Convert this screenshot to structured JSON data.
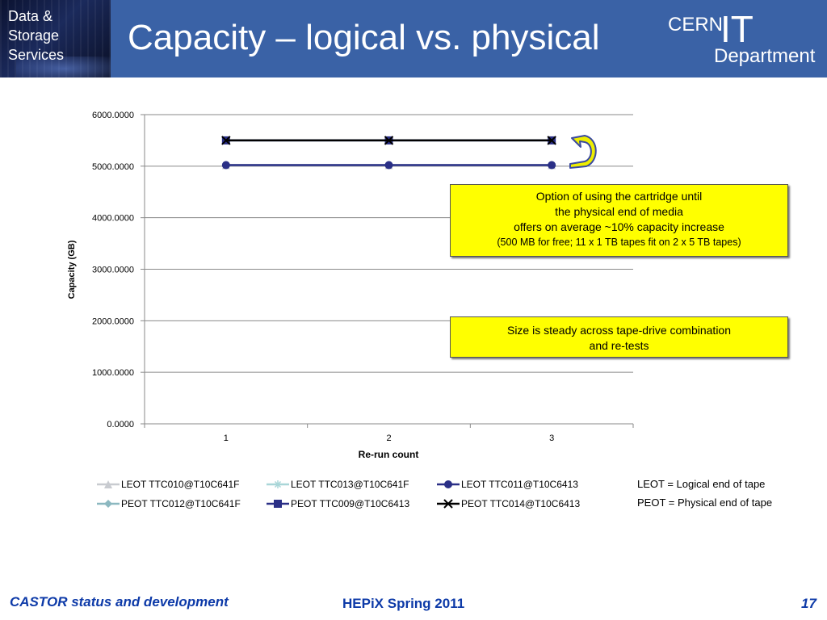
{
  "header": {
    "badge_lines": [
      "Data &",
      "Storage",
      "Services"
    ],
    "title": "Capacity – logical vs. physical",
    "logo": {
      "top": "CERN",
      "big": "IT",
      "bottom": "Department"
    }
  },
  "annotations": {
    "option": {
      "lines": [
        "Option of using the cartridge until",
        "the physical end of media",
        "offers on average ~10% capacity increase"
      ],
      "note": "(500 MB for free; 11 x 1 TB tapes fit on 2 x 5 TB tapes)"
    },
    "steady": {
      "lines": [
        "Size is steady across tape-drive combination",
        "and re-tests"
      ]
    }
  },
  "definitions": [
    "LEOT = Logical end of tape",
    "PEOT = Physical end of tape"
  ],
  "footer": {
    "left": "CASTOR status and development",
    "center": "HEPiX Spring 2011",
    "page": "17"
  },
  "colors": {
    "header_bg": "#3a62a6",
    "footer_text": "#0d3aa8",
    "annotation_bg": "#ffff00",
    "arrow_fill": "#eeee00",
    "arrow_outline": "#3a4aa0"
  },
  "chart_data": {
    "type": "line",
    "xlabel": "Re-run count",
    "ylabel": "Capacity (GB)",
    "categories": [
      "1",
      "2",
      "3"
    ],
    "ylim": [
      0,
      6000
    ],
    "yticks": [
      "0.0000",
      "1000.0000",
      "2000.0000",
      "3000.0000",
      "4000.0000",
      "5000.0000",
      "6000.0000"
    ],
    "grid": true,
    "legend_position": "bottom",
    "series": [
      {
        "name": "LEOT TTC010@T10C641F",
        "values": [
          5020,
          5020,
          5020
        ],
        "color": "#c8cbd0",
        "marker": "triangle"
      },
      {
        "name": "LEOT TTC013@T10C641F",
        "values": [
          5020,
          5020,
          5020
        ],
        "color": "#a9d6d8",
        "marker": "star"
      },
      {
        "name": "LEOT TTC011@T10C6413",
        "values": [
          5020,
          5020,
          5020
        ],
        "color": "#2a2f86",
        "marker": "circle"
      },
      {
        "name": "PEOT TTC012@T10C641F",
        "values": [
          5500,
          5500,
          5500
        ],
        "color": "#8cb8c0",
        "marker": "diamond"
      },
      {
        "name": "PEOT TTC009@T10C6413",
        "values": [
          5500,
          5500,
          5500
        ],
        "color": "#2a2f86",
        "marker": "square"
      },
      {
        "name": "PEOT TTC014@T10C6413",
        "values": [
          5500,
          5500,
          5500
        ],
        "color": "#000000",
        "marker": "x"
      }
    ]
  }
}
